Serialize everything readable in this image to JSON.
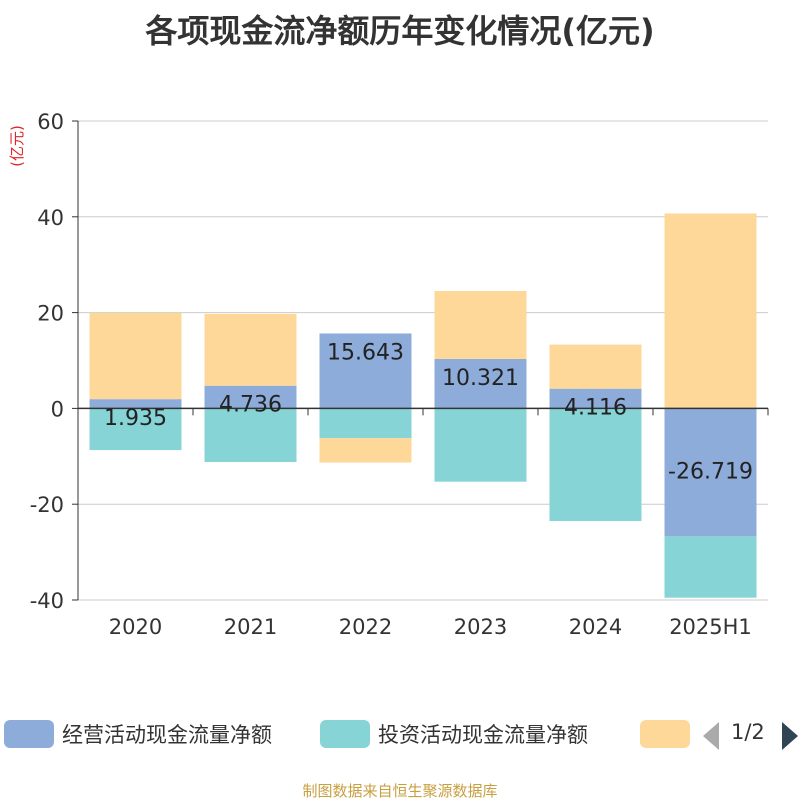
{
  "chart_data": {
    "type": "bar",
    "stacked": true,
    "title": "各项现金流净额历年变化情况(亿元)",
    "ylabel": "(亿元)",
    "ylim": [
      -40,
      60
    ],
    "yticks": [
      -40,
      -20,
      0,
      20,
      40,
      60
    ],
    "grid": true,
    "legend_position": "bottom",
    "categories": [
      "2020",
      "2021",
      "2022",
      "2023",
      "2024",
      "2025H1"
    ],
    "series": [
      {
        "name": "经营活动现金流量净额",
        "color": "#8eacda",
        "values": [
          1.935,
          4.736,
          15.643,
          10.321,
          4.116,
          -26.719
        ],
        "data_labels": [
          "1.935",
          "4.736",
          "15.643",
          "10.321",
          "4.116",
          "-26.719"
        ]
      },
      {
        "name": "投资活动现金流量净额",
        "color": "#86d4d6",
        "values": [
          -8.7,
          -11.2,
          -6.2,
          -15.3,
          -23.5,
          -12.8
        ]
      },
      {
        "name": "",
        "color": "#fdd899",
        "values": [
          18.0,
          15.0,
          -5.1,
          14.2,
          9.2,
          40.7
        ]
      }
    ]
  },
  "legend": {
    "pager": "1/2"
  },
  "source": "制图数据来自恒生聚源数据库"
}
